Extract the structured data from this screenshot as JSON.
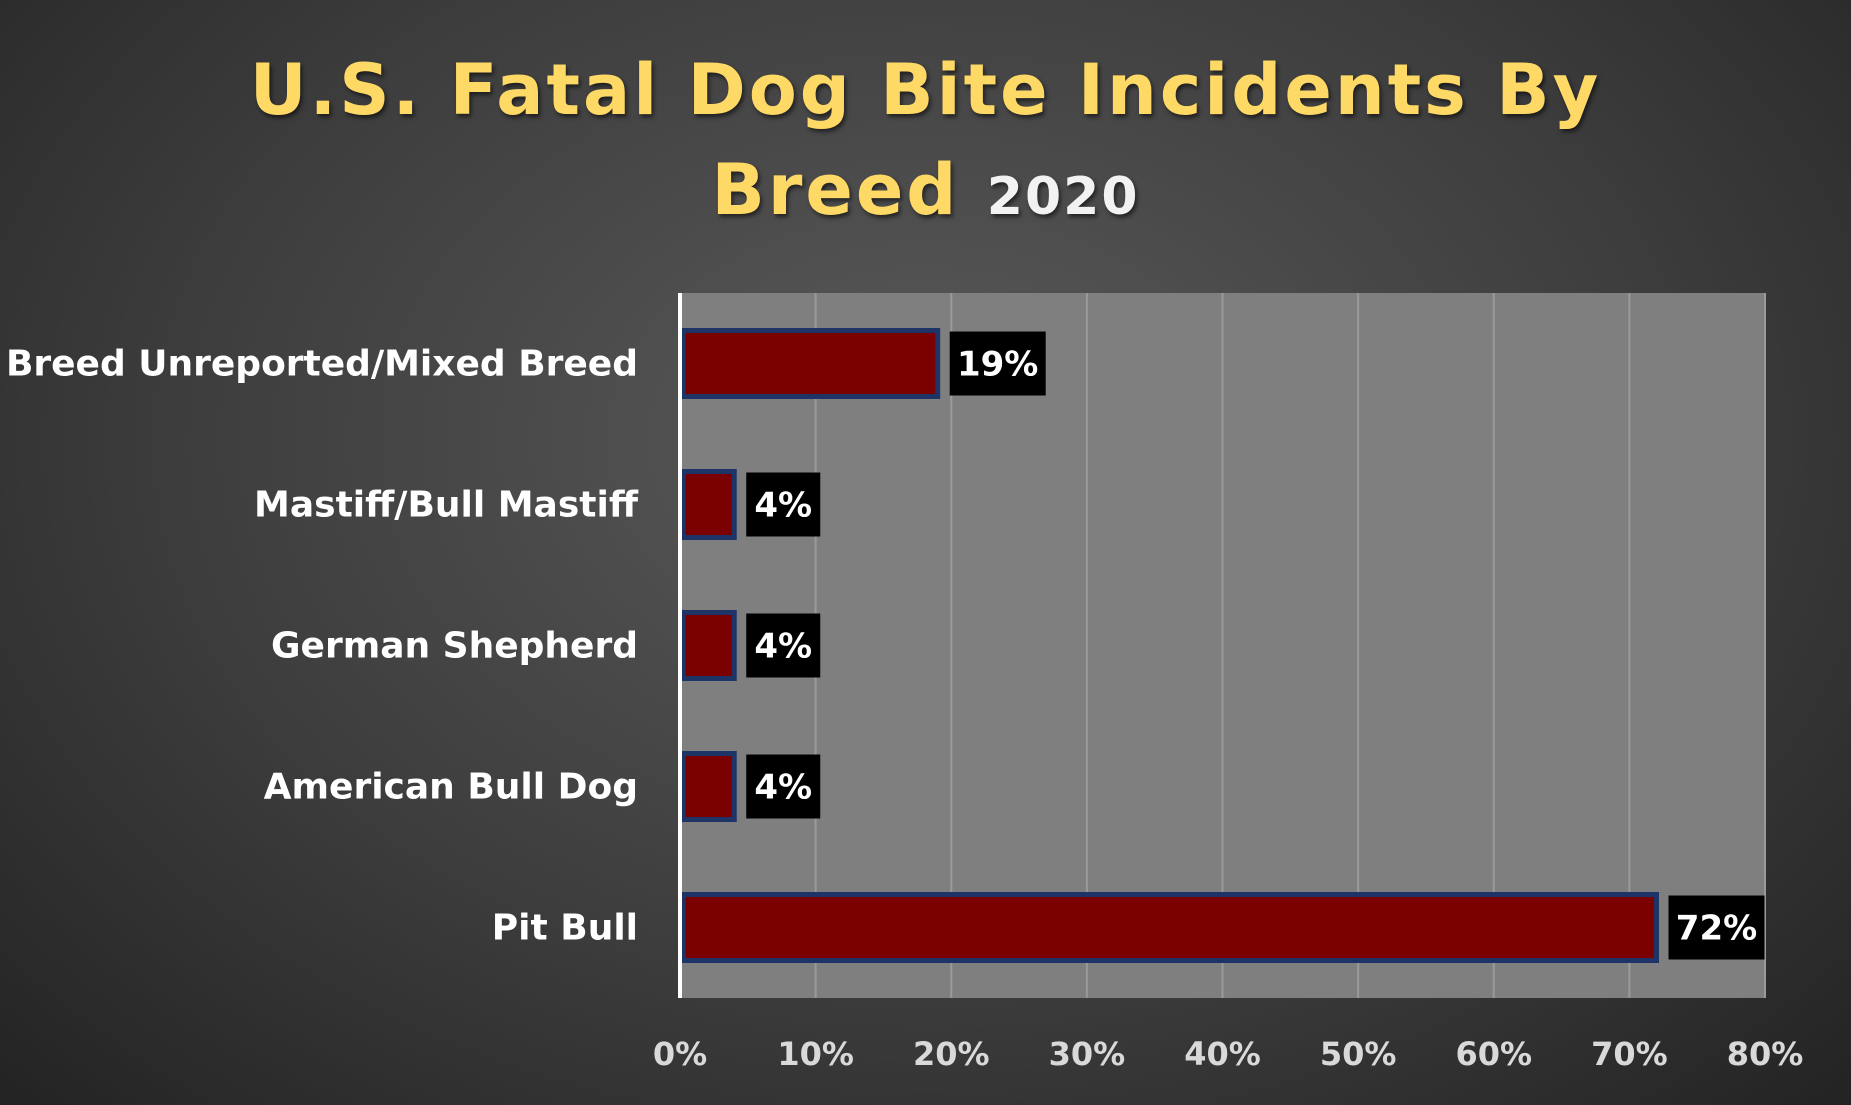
{
  "chart_data": {
    "type": "bar",
    "orientation": "horizontal",
    "title": "U.S. Fatal Dog Bite Incidents By",
    "title_line2": "Breed",
    "title_year": "2020",
    "categories": [
      "Breed Unreported/Mixed Breed",
      "Mastiff/Bull Mastiff",
      "German Shepherd",
      "American Bull Dog",
      "Pit Bull"
    ],
    "values": [
      19,
      4,
      4,
      4,
      72
    ],
    "data_labels": [
      "19%",
      "4%",
      "4%",
      "4%",
      "72%"
    ],
    "xlim": [
      0,
      80
    ],
    "xticks": [
      "0%",
      "10%",
      "20%",
      "30%",
      "40%",
      "50%",
      "60%",
      "70%",
      "80%"
    ],
    "grid": true,
    "legend": "none",
    "colors": {
      "bar_fill": "#7b0000",
      "bar_border": "#1f3466",
      "plot_background": "#7f7f7f",
      "gridline": "#9a9a9a",
      "title": "#ffd966",
      "year": "#f2f2f2",
      "label_box": "#000000",
      "text": "#ffffff",
      "tick_text": "#d9d9d9"
    }
  }
}
